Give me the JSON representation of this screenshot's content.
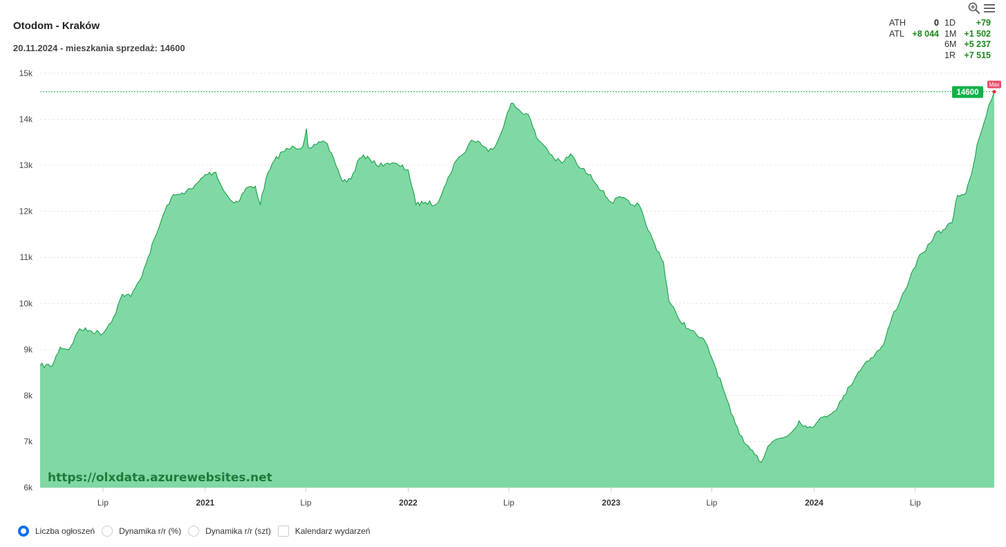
{
  "header": {
    "title": "Otodom - Kraków",
    "subtitle": "20.11.2024 - mieszkania sprzedaż: 14600"
  },
  "toolbar": {
    "icons": [
      "zoom-in-icon",
      "menu-icon"
    ]
  },
  "stats": {
    "ath_label": "ATH",
    "ath_value": "0",
    "atl_label": "ATL",
    "atl_value": "+8 044",
    "d1_label": "1D",
    "d1_value": "+79",
    "m1_label": "1M",
    "m1_value": "+1 502",
    "m6_label": "6M",
    "m6_value": "+5 237",
    "r1_label": "1R",
    "r1_value": "+7 515",
    "positive_color": "#1a8a1a"
  },
  "chart_data": {
    "type": "area",
    "title": "Otodom - Kraków",
    "subtitle": "20.11.2024 - mieszkania sprzedaż: 14600",
    "ylim": [
      6000,
      15000
    ],
    "y_ticks": [
      "6k",
      "7k",
      "8k",
      "9k",
      "10k",
      "11k",
      "12k",
      "13k",
      "14k",
      "15k"
    ],
    "x_ticks": [
      {
        "label": "Lip",
        "date": "2020-07-01",
        "bold": false
      },
      {
        "label": "2021",
        "date": "2021-01-01",
        "bold": true
      },
      {
        "label": "Lip",
        "date": "2021-07-01",
        "bold": false
      },
      {
        "label": "2022",
        "date": "2022-01-01",
        "bold": true
      },
      {
        "label": "Lip",
        "date": "2022-07-01",
        "bold": false
      },
      {
        "label": "2023",
        "date": "2023-01-01",
        "bold": true
      },
      {
        "label": "Lip",
        "date": "2023-07-01",
        "bold": false
      },
      {
        "label": "2024",
        "date": "2024-01-01",
        "bold": true
      },
      {
        "label": "Lip",
        "date": "2024-07-01",
        "bold": false
      }
    ],
    "xlim": [
      "2020-03-10",
      "2024-11-20"
    ],
    "fill_color": "#80d8a4",
    "line_color": "#0b9a3c",
    "current_value": "14600",
    "current_badge_color": "#0fb14a",
    "max_label": "Max",
    "max_badge_color": "#e8506a",
    "grid": "horizontal",
    "series": [
      {
        "points": [
          [
            "2020-03-10",
            8650
          ],
          [
            "2020-04-01",
            8650
          ],
          [
            "2020-04-15",
            9050
          ],
          [
            "2020-05-01",
            9000
          ],
          [
            "2020-05-20",
            9450
          ],
          [
            "2020-06-10",
            9400
          ],
          [
            "2020-07-01",
            9350
          ],
          [
            "2020-07-20",
            9700
          ],
          [
            "2020-08-05",
            10200
          ],
          [
            "2020-08-20",
            10150
          ],
          [
            "2020-09-05",
            10500
          ],
          [
            "2020-09-20",
            11000
          ],
          [
            "2020-10-05",
            11500
          ],
          [
            "2020-10-20",
            12000
          ],
          [
            "2020-11-01",
            12300
          ],
          [
            "2020-11-20",
            12400
          ],
          [
            "2020-12-10",
            12500
          ],
          [
            "2021-01-01",
            12800
          ],
          [
            "2021-01-20",
            12850
          ],
          [
            "2021-02-01",
            12500
          ],
          [
            "2021-02-15",
            12250
          ],
          [
            "2021-03-01",
            12200
          ],
          [
            "2021-03-15",
            12500
          ],
          [
            "2021-04-01",
            12550
          ],
          [
            "2021-04-10",
            12150
          ],
          [
            "2021-04-20",
            12700
          ],
          [
            "2021-05-05",
            13100
          ],
          [
            "2021-05-20",
            13300
          ],
          [
            "2021-06-10",
            13400
          ],
          [
            "2021-06-25",
            13400
          ],
          [
            "2021-07-02",
            13800
          ],
          [
            "2021-07-05",
            13400
          ],
          [
            "2021-07-20",
            13450
          ],
          [
            "2021-08-05",
            13500
          ],
          [
            "2021-08-20",
            13150
          ],
          [
            "2021-09-05",
            12650
          ],
          [
            "2021-09-20",
            12700
          ],
          [
            "2021-10-05",
            13150
          ],
          [
            "2021-10-20",
            13200
          ],
          [
            "2021-11-05",
            13000
          ],
          [
            "2021-11-25",
            13050
          ],
          [
            "2021-12-15",
            13000
          ],
          [
            "2022-01-01",
            12900
          ],
          [
            "2022-01-15",
            12150
          ],
          [
            "2022-02-01",
            12200
          ],
          [
            "2022-02-20",
            12150
          ],
          [
            "2022-03-10",
            12600
          ],
          [
            "2022-03-25",
            13050
          ],
          [
            "2022-04-10",
            13250
          ],
          [
            "2022-04-25",
            13550
          ],
          [
            "2022-05-10",
            13500
          ],
          [
            "2022-05-25",
            13300
          ],
          [
            "2022-06-10",
            13500
          ],
          [
            "2022-06-25",
            14000
          ],
          [
            "2022-07-05",
            14350
          ],
          [
            "2022-07-20",
            14200
          ],
          [
            "2022-08-05",
            14100
          ],
          [
            "2022-08-20",
            13600
          ],
          [
            "2022-09-05",
            13400
          ],
          [
            "2022-09-20",
            13150
          ],
          [
            "2022-10-05",
            13050
          ],
          [
            "2022-10-20",
            13250
          ],
          [
            "2022-11-05",
            12950
          ],
          [
            "2022-11-25",
            12800
          ],
          [
            "2022-12-15",
            12450
          ],
          [
            "2023-01-01",
            12200
          ],
          [
            "2023-01-20",
            12300
          ],
          [
            "2023-02-05",
            12150
          ],
          [
            "2023-02-20",
            12150
          ],
          [
            "2023-03-05",
            11700
          ],
          [
            "2023-03-20",
            11300
          ],
          [
            "2023-04-05",
            10900
          ],
          [
            "2023-04-15",
            10050
          ],
          [
            "2023-05-01",
            9700
          ],
          [
            "2023-05-20",
            9450
          ],
          [
            "2023-06-05",
            9300
          ],
          [
            "2023-06-20",
            9150
          ],
          [
            "2023-07-05",
            8700
          ],
          [
            "2023-07-20",
            8200
          ],
          [
            "2023-08-05",
            7600
          ],
          [
            "2023-08-20",
            7150
          ],
          [
            "2023-09-05",
            6900
          ],
          [
            "2023-09-20",
            6700
          ],
          [
            "2023-09-28",
            6550
          ],
          [
            "2023-10-10",
            6900
          ],
          [
            "2023-10-25",
            7050
          ],
          [
            "2023-11-10",
            7100
          ],
          [
            "2023-11-25",
            7250
          ],
          [
            "2023-12-05",
            7450
          ],
          [
            "2023-12-20",
            7300
          ],
          [
            "2024-01-05",
            7400
          ],
          [
            "2024-01-20",
            7550
          ],
          [
            "2024-02-05",
            7650
          ],
          [
            "2024-02-20",
            7900
          ],
          [
            "2024-03-05",
            8200
          ],
          [
            "2024-03-20",
            8500
          ],
          [
            "2024-04-05",
            8750
          ],
          [
            "2024-04-20",
            8900
          ],
          [
            "2024-05-05",
            9100
          ],
          [
            "2024-05-20",
            9700
          ],
          [
            "2024-06-05",
            10100
          ],
          [
            "2024-06-20",
            10500
          ],
          [
            "2024-07-05",
            10950
          ],
          [
            "2024-07-20",
            11150
          ],
          [
            "2024-08-05",
            11500
          ],
          [
            "2024-08-20",
            11600
          ],
          [
            "2024-09-05",
            11750
          ],
          [
            "2024-09-15",
            12350
          ],
          [
            "2024-09-30",
            12400
          ],
          [
            "2024-10-10",
            12800
          ],
          [
            "2024-10-20",
            13450
          ],
          [
            "2024-11-01",
            13900
          ],
          [
            "2024-11-10",
            14300
          ],
          [
            "2024-11-20",
            14600
          ]
        ]
      }
    ]
  },
  "watermark": "https://olxdata.azurewebsites.net",
  "legend": [
    {
      "label": "Liczba ogłoszeń",
      "kind": "radio",
      "checked": true
    },
    {
      "label": "Dynamika r/r (%)",
      "kind": "radio",
      "checked": false
    },
    {
      "label": "Dynamika r/r (szt)",
      "kind": "radio",
      "checked": false
    },
    {
      "label": "Kalendarz wydarzeń",
      "kind": "checkbox",
      "checked": false
    }
  ]
}
